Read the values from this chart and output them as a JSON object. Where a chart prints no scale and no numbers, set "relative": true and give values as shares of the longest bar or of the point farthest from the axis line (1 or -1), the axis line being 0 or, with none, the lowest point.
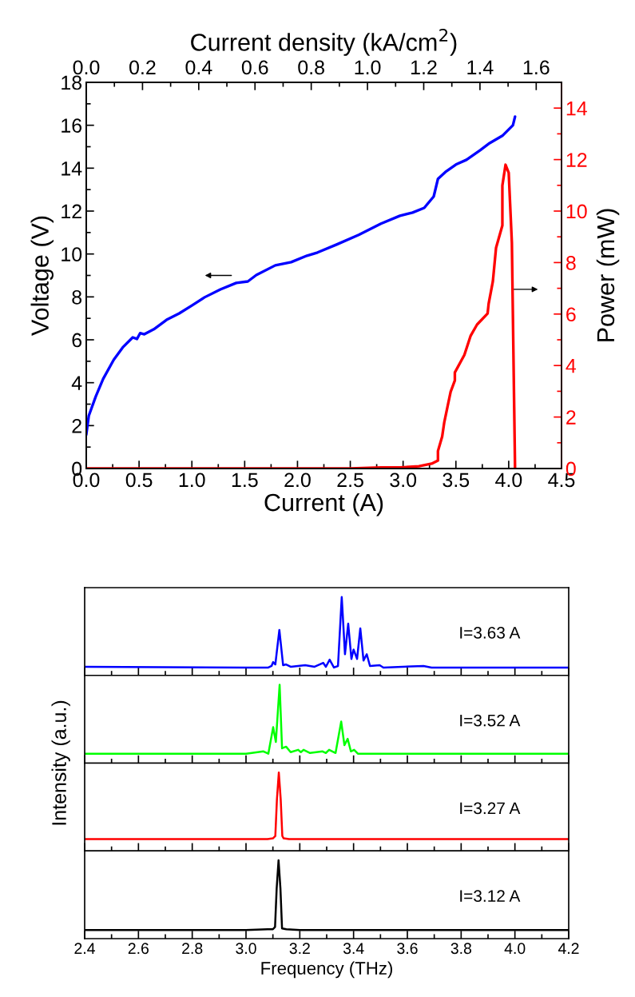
{
  "chart_data": [
    {
      "type": "line",
      "xlabel": "Current (A)",
      "ylabel": "Voltage (V)",
      "y2label": "Power (mW)",
      "x2label": "Current density (kA/cm$^{2}$)",
      "xlim": [
        0,
        4.5
      ],
      "xticks": [
        {
          "value": 0,
          "label": "0.0"
        },
        {
          "value": 0.5,
          "label": "0.5"
        },
        {
          "value": 1,
          "label": "1.0"
        },
        {
          "value": 1.5,
          "label": "1.5"
        },
        {
          "value": 2,
          "label": "2.0"
        },
        {
          "value": 2.5,
          "label": "2.5"
        },
        {
          "value": 3,
          "label": "3.0"
        },
        {
          "value": 3.5,
          "label": "3.5"
        },
        {
          "value": 4,
          "label": "4.0"
        },
        {
          "value": 4.5,
          "label": "4.5"
        }
      ],
      "x2lim": [
        0,
        1.69
      ],
      "x2ticks": [
        {
          "value": 0,
          "label": "0.0"
        },
        {
          "value": 0.2,
          "label": "0.2"
        },
        {
          "value": 0.4,
          "label": "0.4"
        },
        {
          "value": 0.6,
          "label": "0.6"
        },
        {
          "value": 0.8,
          "label": "0.8"
        },
        {
          "value": 1,
          "label": "1.0"
        },
        {
          "value": 1.2,
          "label": "1.2"
        },
        {
          "value": 1.4,
          "label": "1.4"
        },
        {
          "value": 1.6,
          "label": "1.6"
        }
      ],
      "ylim": [
        0,
        18
      ],
      "yticks": [
        0,
        2,
        4,
        6,
        8,
        10,
        12,
        14,
        16,
        18
      ],
      "y2lim": [
        0,
        15
      ],
      "y2ticks": [
        0,
        2,
        4,
        6,
        8,
        10,
        12,
        14
      ],
      "series": [
        {
          "color": "#0000ff",
          "x": [
            0,
            0.024,
            0.09,
            0.16,
            0.26,
            0.35,
            0.44,
            0.48,
            0.51,
            0.55,
            0.64,
            0.76,
            0.88,
            1.0,
            1.12,
            1.27,
            1.42,
            1.53,
            1.61,
            1.79,
            1.94,
            2.09,
            2.19,
            2.37,
            2.58,
            2.79,
            2.97,
            3.09,
            3.2,
            3.29,
            3.33,
            3.4,
            3.5,
            3.6,
            3.73,
            3.82,
            3.94,
            4.04,
            4.06
          ],
          "values": [
            1.57,
            2.46,
            3.36,
            4.18,
            5.07,
            5.67,
            6.11,
            6.04,
            6.31,
            6.26,
            6.49,
            6.93,
            7.23,
            7.6,
            7.98,
            8.35,
            8.65,
            8.72,
            9.02,
            9.47,
            9.62,
            9.92,
            10.07,
            10.44,
            10.89,
            11.41,
            11.78,
            11.93,
            12.15,
            12.68,
            13.5,
            13.82,
            14.17,
            14.39,
            14.84,
            15.17,
            15.51,
            16.0,
            16.4
          ]
        },
        {
          "color": "#ff0000",
          "axis": "y2",
          "x": [
            0,
            2.5,
            2.79,
            2.97,
            3.15,
            3.27,
            3.33,
            3.33,
            3.37,
            3.39,
            3.45,
            3.49,
            3.49,
            3.58,
            3.64,
            3.7,
            3.8,
            3.81,
            3.85,
            3.88,
            3.94,
            3.94,
            3.97,
            4.0,
            4.03,
            4.06
          ],
          "values": [
            0,
            0,
            0.04,
            0.04,
            0.09,
            0.19,
            0.31,
            0.68,
            1.24,
            1.8,
            2.98,
            3.42,
            3.73,
            4.41,
            5.16,
            5.59,
            6.02,
            6.4,
            7.27,
            8.57,
            9.44,
            10.99,
            11.8,
            11.49,
            8.76,
            0
          ]
        }
      ]
    },
    {
      "type": "line",
      "relative": true,
      "xlim": [
        2.4,
        4.2
      ],
      "tick_labels": false,
      "annotations": [
        "I=3.63 A"
      ],
      "x": [
        2.4,
        3.0,
        3.083,
        3.095,
        3.101,
        3.109,
        3.124,
        3.138,
        3.149,
        3.166,
        3.22,
        3.255,
        3.287,
        3.297,
        3.311,
        3.327,
        3.342,
        3.356,
        3.368,
        3.38,
        3.392,
        3.4,
        3.413,
        3.425,
        3.437,
        3.449,
        3.461,
        3.497,
        3.511,
        3.66,
        3.69,
        4.2
      ],
      "series": [
        {
          "color": "#0000ff",
          "values": [
            0.11,
            0.1,
            0.1,
            0.12,
            0.17,
            0.14,
            0.58,
            0.13,
            0.14,
            0.11,
            0.13,
            0.11,
            0.16,
            0.11,
            0.2,
            0.1,
            0.12,
            1.0,
            0.27,
            0.66,
            0.21,
            0.33,
            0.21,
            0.6,
            0.19,
            0.27,
            0.12,
            0.13,
            0.1,
            0.12,
            0.1,
            0.1
          ]
        }
      ]
    },
    {
      "type": "line",
      "relative": true,
      "xlim": [
        2.4,
        4.2
      ],
      "tick_labels": false,
      "annotations": [
        "I=3.52 A"
      ],
      "ylabel": "Intensity (a.u.)",
      "x": [
        2.4,
        3.0,
        3.065,
        3.083,
        3.101,
        3.111,
        3.125,
        3.134,
        3.149,
        3.166,
        3.194,
        3.204,
        3.214,
        3.238,
        3.285,
        3.297,
        3.309,
        3.333,
        3.354,
        3.366,
        3.378,
        3.39,
        3.402,
        3.416,
        4.2
      ],
      "series": [
        {
          "color": "#00ff00",
          "values": [
            0.12,
            0.12,
            0.15,
            0.12,
            0.46,
            0.27,
            1.0,
            0.19,
            0.21,
            0.14,
            0.17,
            0.14,
            0.17,
            0.13,
            0.15,
            0.13,
            0.17,
            0.13,
            0.53,
            0.23,
            0.31,
            0.15,
            0.17,
            0.12,
            0.12
          ]
        }
      ]
    },
    {
      "type": "line",
      "relative": true,
      "xlim": [
        2.4,
        4.2
      ],
      "tick_labels": false,
      "annotations": [
        "I=3.27 A"
      ],
      "x": [
        2.4,
        3.08,
        3.1,
        3.109,
        3.115,
        3.122,
        3.129,
        3.135,
        3.14,
        3.16,
        4.2
      ],
      "series": [
        {
          "color": "#ff0000",
          "values": [
            0.15,
            0.15,
            0.16,
            0.19,
            0.66,
            1.0,
            0.66,
            0.19,
            0.16,
            0.15,
            0.15
          ]
        }
      ]
    },
    {
      "type": "line",
      "relative": true,
      "xlim": [
        2.4,
        4.2
      ],
      "tick_labels": "x",
      "annotations": [
        "I=3.12 A"
      ],
      "xlabel": "Frequency (THz)",
      "xticks": [
        {
          "value": 2.4,
          "label": "2.4"
        },
        {
          "value": 2.6,
          "label": "2.6"
        },
        {
          "value": 2.8,
          "label": "2.8"
        },
        {
          "value": 3.0,
          "label": "3.0"
        },
        {
          "value": 3.2,
          "label": "3.2"
        },
        {
          "value": 3.4,
          "label": "3.4"
        },
        {
          "value": 3.6,
          "label": "3.6"
        },
        {
          "value": 3.8,
          "label": "3.8"
        },
        {
          "value": 4.0,
          "label": "4.0"
        },
        {
          "value": 4.2,
          "label": "4.2"
        }
      ],
      "x": [
        2.4,
        3.0,
        3.08,
        3.1,
        3.108,
        3.114,
        3.121,
        3.128,
        3.134,
        3.15,
        3.2,
        4.2
      ],
      "series": [
        {
          "color": "#000000",
          "values": [
            0.11,
            0.11,
            0.12,
            0.12,
            0.15,
            0.64,
            1.0,
            0.64,
            0.13,
            0.12,
            0.11,
            0.11
          ]
        }
      ]
    }
  ]
}
